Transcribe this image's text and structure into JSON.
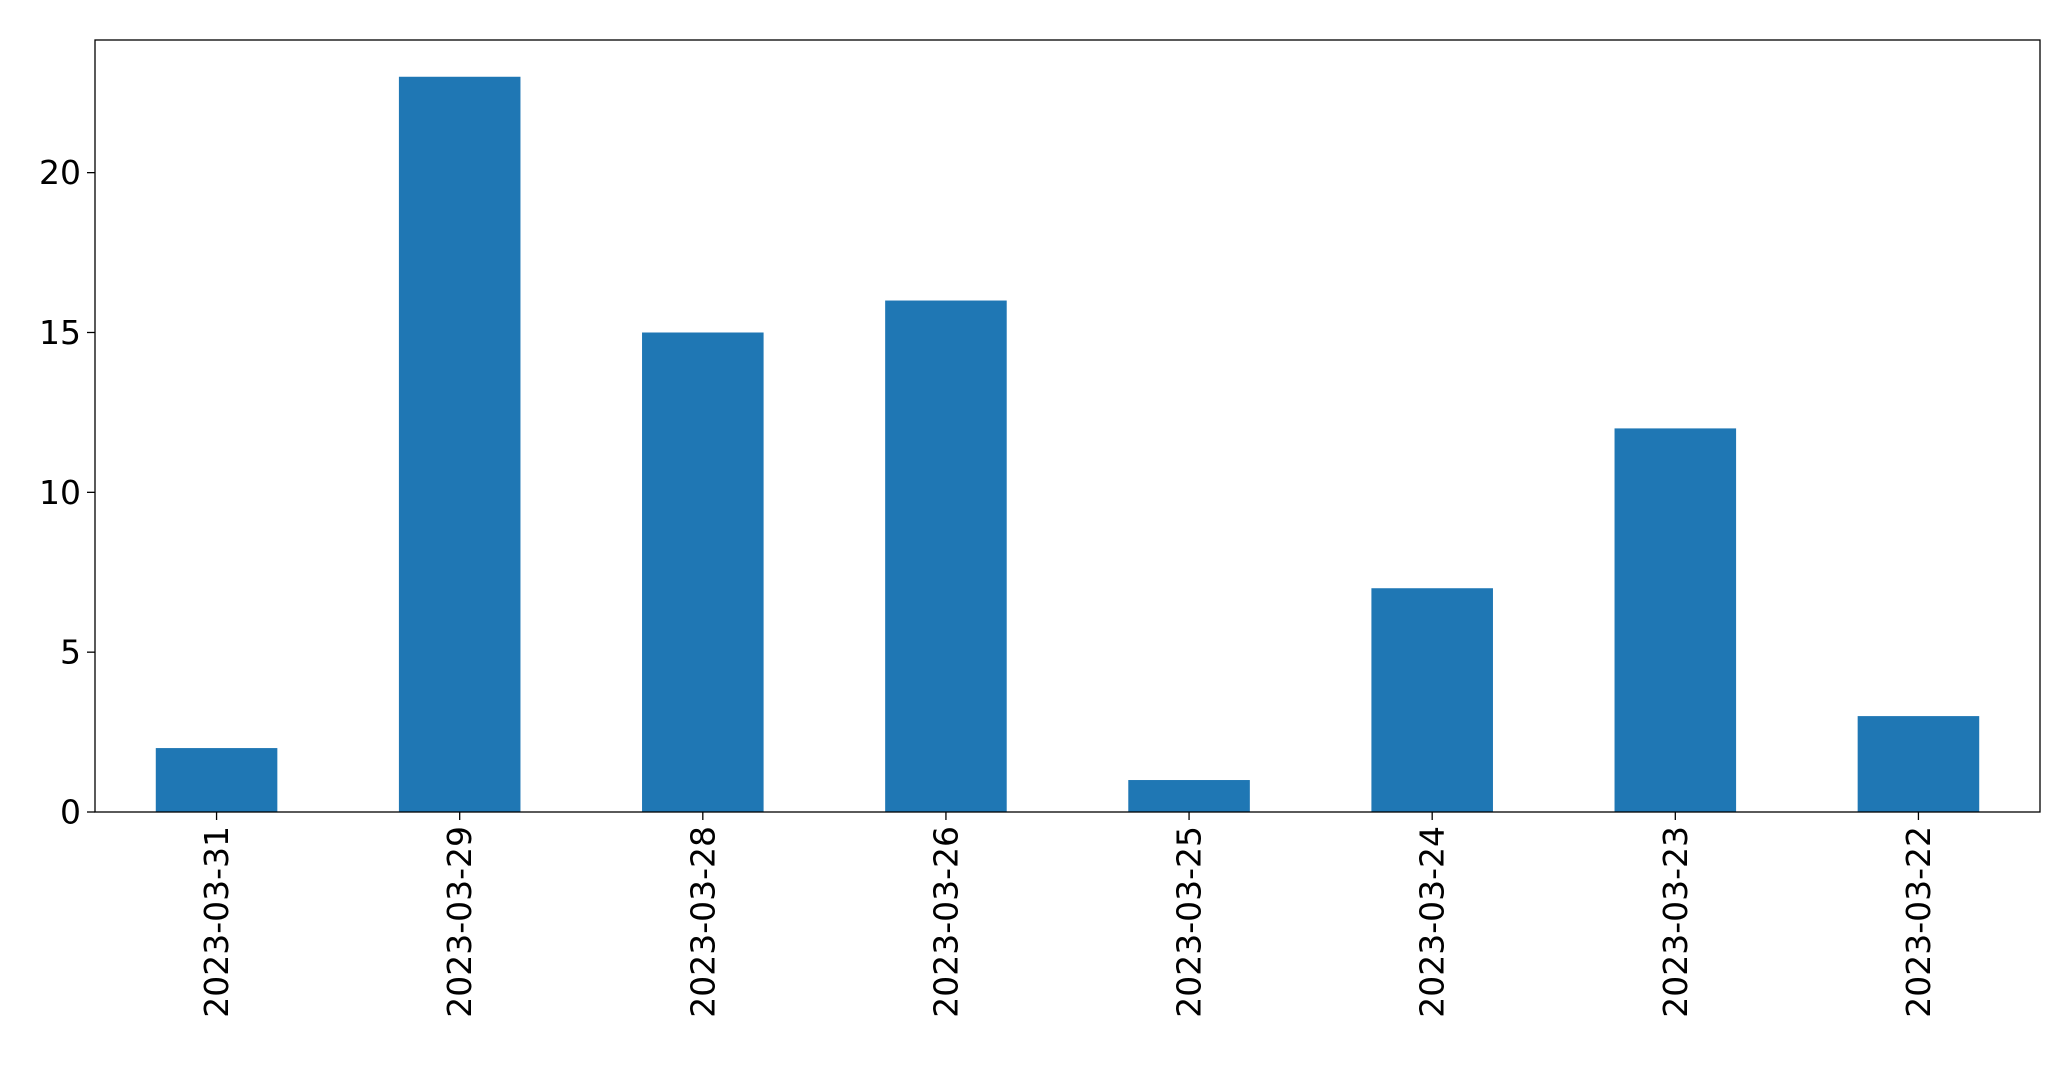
{
  "chart_data": {
    "type": "bar",
    "title": "",
    "xlabel": "",
    "ylabel": "",
    "categories": [
      "2023-03-31",
      "2023-03-29",
      "2023-03-28",
      "2023-03-26",
      "2023-03-25",
      "2023-03-24",
      "2023-03-23",
      "2023-03-22"
    ],
    "values": [
      2,
      23,
      15,
      16,
      1,
      7,
      12,
      3
    ],
    "ylim": [
      0,
      24.15
    ],
    "yticks": [
      0,
      5,
      10,
      15,
      20
    ],
    "grid": false,
    "legend": "none",
    "bar_color": "#1f77b4"
  }
}
